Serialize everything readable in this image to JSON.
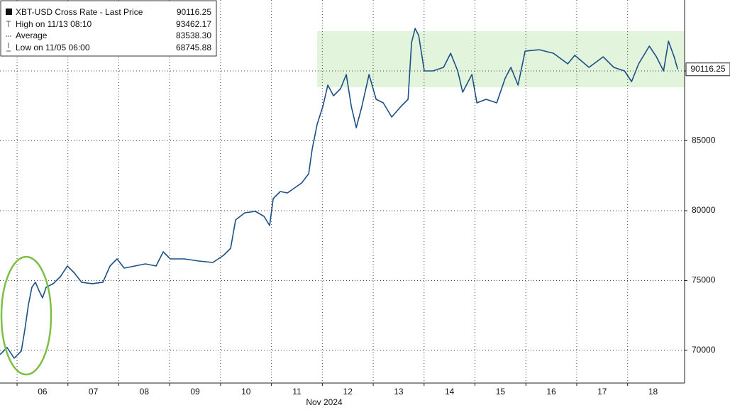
{
  "chart_data": {
    "type": "line",
    "x_label": "Nov 2024",
    "series": [
      {
        "name": "XBT-USD Cross Rate - Last Price",
        "color": "#1c4f86",
        "x": [
          5.665,
          5.804,
          5.944,
          6.083,
          6.153,
          6.223,
          6.293,
          6.362,
          6.432,
          6.502,
          6.572,
          6.711,
          6.851,
          6.99,
          7.129,
          7.269,
          7.478,
          7.687,
          7.827,
          7.966,
          8.106,
          8.315,
          8.524,
          8.733,
          8.873,
          9.012,
          9.291,
          9.57,
          9.849,
          10.058,
          10.198,
          10.295,
          10.477,
          10.686,
          10.853,
          10.965,
          11.035,
          11.174,
          11.314,
          11.453,
          11.593,
          11.732,
          11.802,
          11.899,
          12.011,
          12.108,
          12.22,
          12.359,
          12.471,
          12.569,
          12.667,
          12.778,
          12.918,
          13.057,
          13.197,
          13.364,
          13.545,
          13.685,
          13.754,
          13.824,
          13.894,
          14.005,
          14.173,
          14.382,
          14.521,
          14.661,
          14.758,
          14.94,
          15.037,
          15.219,
          15.428,
          15.595,
          15.707,
          15.846,
          15.986,
          16.265,
          16.544,
          16.823,
          16.962,
          17.241,
          17.52,
          17.729,
          17.939,
          18.078,
          18.217,
          18.427,
          18.566,
          18.706,
          18.803,
          18.915,
          18.985
        ],
        "values": [
          69695,
          70203,
          69442,
          69949,
          71472,
          73249,
          74518,
          74873,
          74264,
          73756,
          74518,
          74772,
          75279,
          76040,
          75533,
          74873,
          74772,
          74873,
          76040,
          76548,
          75888,
          76040,
          76193,
          76040,
          77056,
          76548,
          76548,
          76396,
          76294,
          76802,
          77309,
          79340,
          79847,
          79949,
          79594,
          78934,
          80863,
          81370,
          81269,
          81624,
          81980,
          82640,
          84416,
          86193,
          87462,
          88985,
          88223,
          88731,
          89746,
          87462,
          85939,
          87462,
          89746,
          87969,
          87716,
          86701,
          87462,
          87969,
          92030,
          93046,
          92538,
          90000,
          90000,
          90254,
          91269,
          90000,
          88477,
          89746,
          87716,
          87969,
          87716,
          89492,
          90254,
          88985,
          91421,
          91523,
          91269,
          90508,
          91117,
          90254,
          91015,
          90254,
          90000,
          89239,
          90508,
          91777,
          91015,
          90000,
          92131,
          91015,
          90116.25
        ]
      }
    ],
    "last_price": 90116.25,
    "stats": [
      {
        "label": "High on 11/13 08:10",
        "value": 93462.17
      },
      {
        "label": "Average",
        "value": 83538.3,
        "value_label": "83538.30"
      },
      {
        "label": "Low on 11/05 06:00",
        "value": 68745.88
      }
    ],
    "xlim": [
      5.665,
      19.12
    ],
    "xticks": [
      {
        "value": 6,
        "label": "06"
      },
      {
        "value": 7,
        "label": "07"
      },
      {
        "value": 8,
        "label": "08"
      },
      {
        "value": 9,
        "label": "09"
      },
      {
        "value": 10,
        "label": "10"
      },
      {
        "value": 11,
        "label": "11"
      },
      {
        "value": 12,
        "label": "12"
      },
      {
        "value": 13,
        "label": "13"
      },
      {
        "value": 14,
        "label": "14"
      },
      {
        "value": 15,
        "label": "15"
      },
      {
        "value": 16,
        "label": "16"
      },
      {
        "value": 17,
        "label": "17"
      },
      {
        "value": 18,
        "label": "18"
      }
    ],
    "ylim": [
      67660,
      95080
    ],
    "yticks": [
      70000,
      75000,
      80000,
      85000,
      90000
    ],
    "grid": true
  }
}
